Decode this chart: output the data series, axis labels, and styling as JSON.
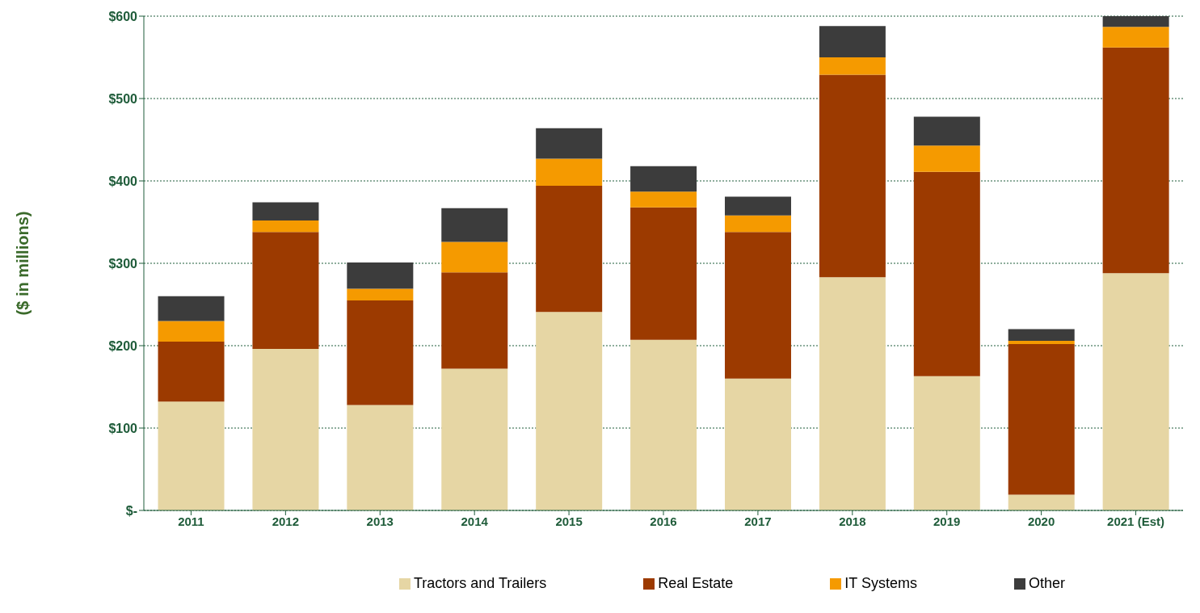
{
  "chart_data": {
    "type": "bar",
    "stacked": true,
    "ylabel": "($ in millions)",
    "categories": [
      "2011",
      "2012",
      "2013",
      "2014",
      "2015",
      "2016",
      "2017",
      "2018",
      "2019",
      "2020",
      "2021 (Est)"
    ],
    "series": [
      {
        "name": "Tractors and Trailers",
        "color": "#e6d6a4",
        "values": [
          132,
          196,
          128,
          172,
          241,
          207,
          160,
          283,
          163,
          19,
          288
        ]
      },
      {
        "name": "Real Estate",
        "color": "#9c3a00",
        "values": [
          73,
          142,
          127,
          117,
          153,
          161,
          178,
          246,
          248,
          183,
          274
        ]
      },
      {
        "name": "IT Systems",
        "color": "#f59a00",
        "values": [
          25,
          14,
          14,
          37,
          33,
          19,
          20,
          21,
          32,
          4,
          25
        ]
      },
      {
        "name": "Other",
        "color": "#3c3c3c",
        "values": [
          30,
          22,
          32,
          41,
          37,
          31,
          23,
          38,
          35,
          14,
          13
        ]
      }
    ],
    "ylim": [
      0,
      600
    ],
    "yticks": [
      {
        "value": 0,
        "label": "$-"
      },
      {
        "value": 100,
        "label": "$100"
      },
      {
        "value": 200,
        "label": "$200"
      },
      {
        "value": 300,
        "label": "$300"
      },
      {
        "value": 400,
        "label": "$400"
      },
      {
        "value": 500,
        "label": "$500"
      },
      {
        "value": 600,
        "label": "$600"
      }
    ],
    "grid": "y",
    "legend": "bottom"
  }
}
